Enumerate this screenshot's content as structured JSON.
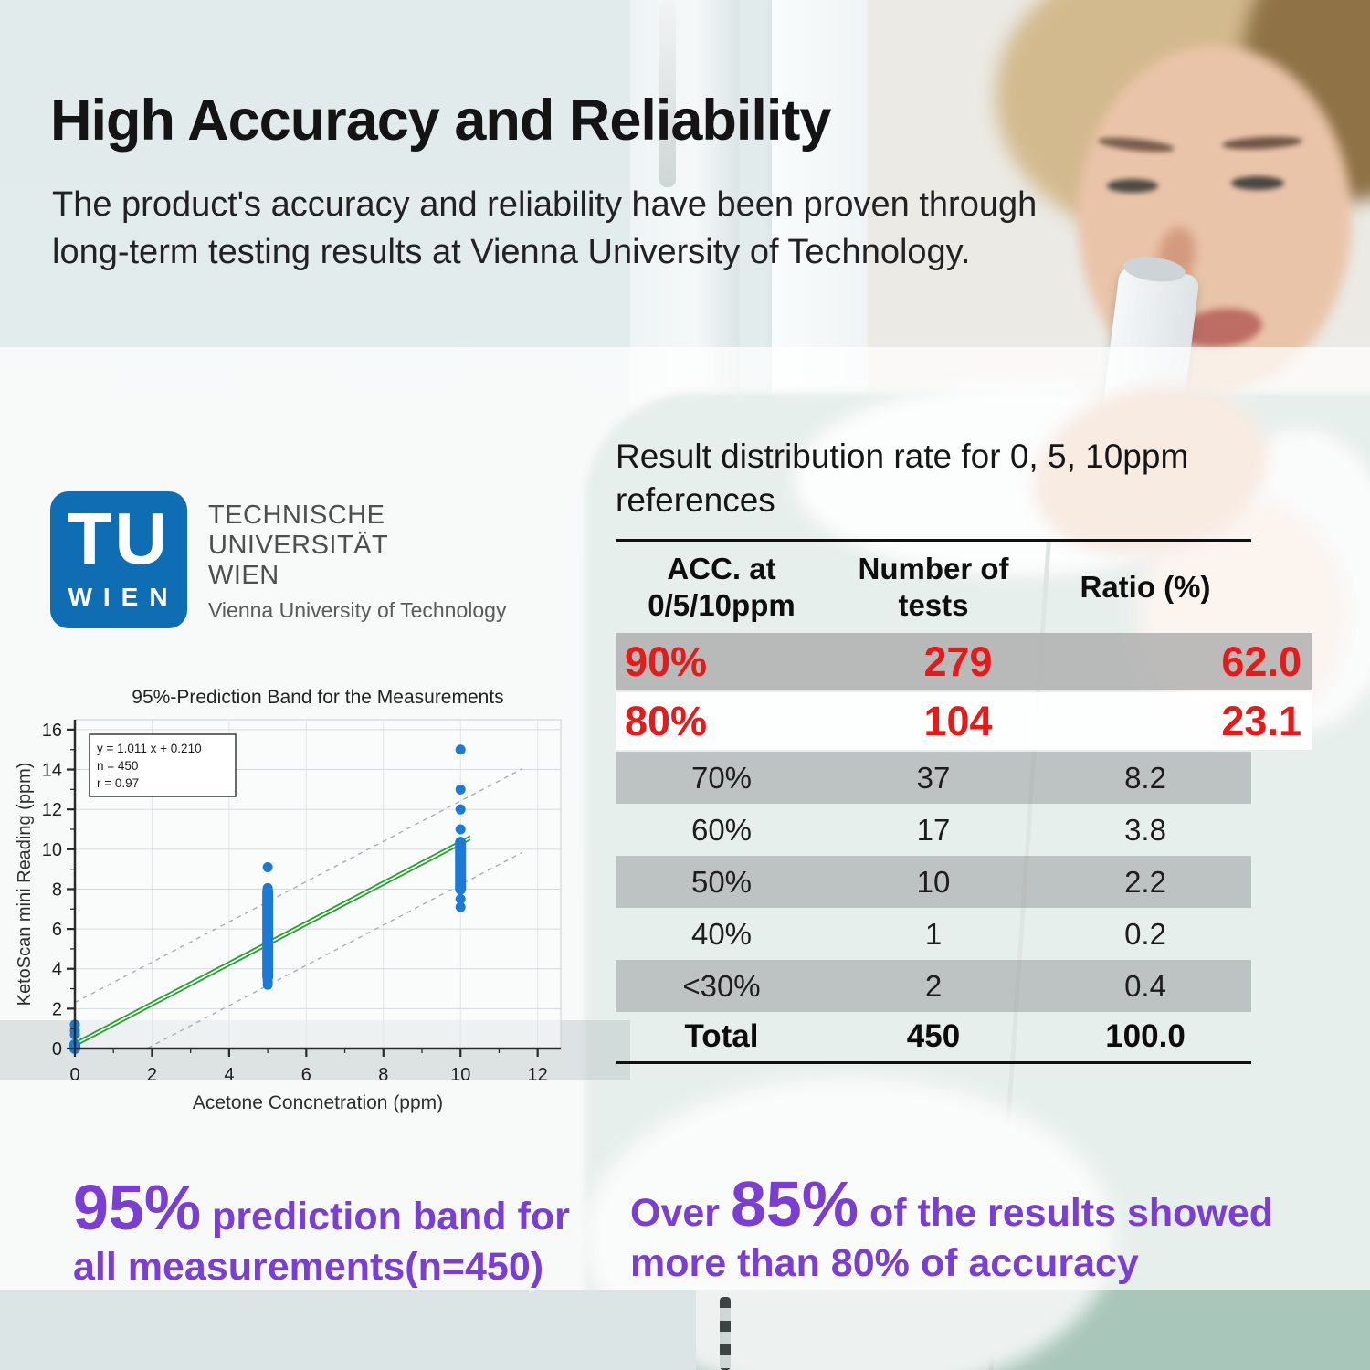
{
  "page": {
    "title": "High Accuracy and Reliability",
    "subtitle": "The product's accuracy and reliability have been proven through\nlong-term testing results at Vienna University of Technology."
  },
  "logo": {
    "acronym": "TU",
    "city": "WIEN",
    "name_line1": "TECHNISCHE",
    "name_line2": "UNIVERSITÄT",
    "name_line3": "WIEN",
    "name_en": "Vienna University of Technology",
    "brand_color": "#0f6db4"
  },
  "table": {
    "heading": "Result distribution rate for 0, 5, 10ppm\nreferences",
    "columns": [
      "ACC. at\n0/5/10ppm",
      "Number of\ntests",
      "Ratio (%)"
    ],
    "rows": [
      {
        "acc": "90%",
        "tests": "279",
        "ratio": "62.0",
        "emphasis": true,
        "shaded": true,
        "total": false
      },
      {
        "acc": "80%",
        "tests": "104",
        "ratio": "23.1",
        "emphasis": true,
        "shaded": false,
        "total": false
      },
      {
        "acc": "70%",
        "tests": "37",
        "ratio": "8.2",
        "emphasis": false,
        "shaded": true,
        "total": false
      },
      {
        "acc": "60%",
        "tests": "17",
        "ratio": "3.8",
        "emphasis": false,
        "shaded": false,
        "total": false
      },
      {
        "acc": "50%",
        "tests": "10",
        "ratio": "2.2",
        "emphasis": false,
        "shaded": true,
        "total": false
      },
      {
        "acc": "40%",
        "tests": "1",
        "ratio": "0.2",
        "emphasis": false,
        "shaded": false,
        "total": false
      },
      {
        "acc": "<30%",
        "tests": "2",
        "ratio": "0.4",
        "emphasis": false,
        "shaded": true,
        "total": false
      },
      {
        "acc": "Total",
        "tests": "450",
        "ratio": "100.0",
        "emphasis": false,
        "shaded": false,
        "total": true
      }
    ],
    "emphasis_color": "#e31b1b"
  },
  "captions": {
    "left_big": "95%",
    "left_rest": " prediction band for\nall measurements(n=450)",
    "right_prefix": "Over ",
    "right_big": "85%",
    "right_rest": " of the results showed\nmore than 80% of accuracy",
    "color": "#7b3ed2"
  },
  "chart_data": {
    "type": "scatter",
    "title": "95%-Prediction Band for the Measurements",
    "xlabel": "Acetone Concnetration (ppm)",
    "ylabel": "KetoScan mini Reading (ppm)",
    "xlim": [
      0,
      12.6
    ],
    "ylim": [
      0,
      16.5
    ],
    "xticks": [
      0,
      2,
      4,
      6,
      8,
      10,
      12
    ],
    "yticks": [
      0,
      2,
      4,
      6,
      8,
      10,
      12,
      14,
      16
    ],
    "grid": true,
    "legend": null,
    "annotation_lines": [
      "y = 1.011 x + 0.210",
      "n = 450",
      "r = 0.97"
    ],
    "fit": {
      "slope": 1.011,
      "intercept": 0.21,
      "x_range": [
        0,
        10.25
      ]
    },
    "prediction_band_halfwidth": 2.1,
    "band_x_range": [
      0,
      11.6
    ],
    "reference_x": [
      0,
      5,
      10
    ],
    "dense_clusters": [
      {
        "x": 0,
        "y_from": 0.0,
        "y_to": 0.2
      },
      {
        "x": 5,
        "y_from": 3.6,
        "y_to": 7.9
      },
      {
        "x": 10,
        "y_from": 8.0,
        "y_to": 10.35
      }
    ],
    "outlier_points": [
      [
        0,
        0.7
      ],
      [
        0,
        0.9
      ],
      [
        0,
        1.2
      ],
      [
        5,
        3.2
      ],
      [
        5,
        3.4
      ],
      [
        5,
        8.05
      ],
      [
        5,
        9.1
      ],
      [
        10,
        7.1
      ],
      [
        10,
        7.5
      ],
      [
        10,
        11.0
      ],
      [
        10,
        12.0
      ],
      [
        10,
        13.0
      ],
      [
        10,
        15.0
      ]
    ],
    "point_color": "#1b7ad6",
    "fit_color": "#27a02c",
    "band_color": "#a7adb2"
  }
}
